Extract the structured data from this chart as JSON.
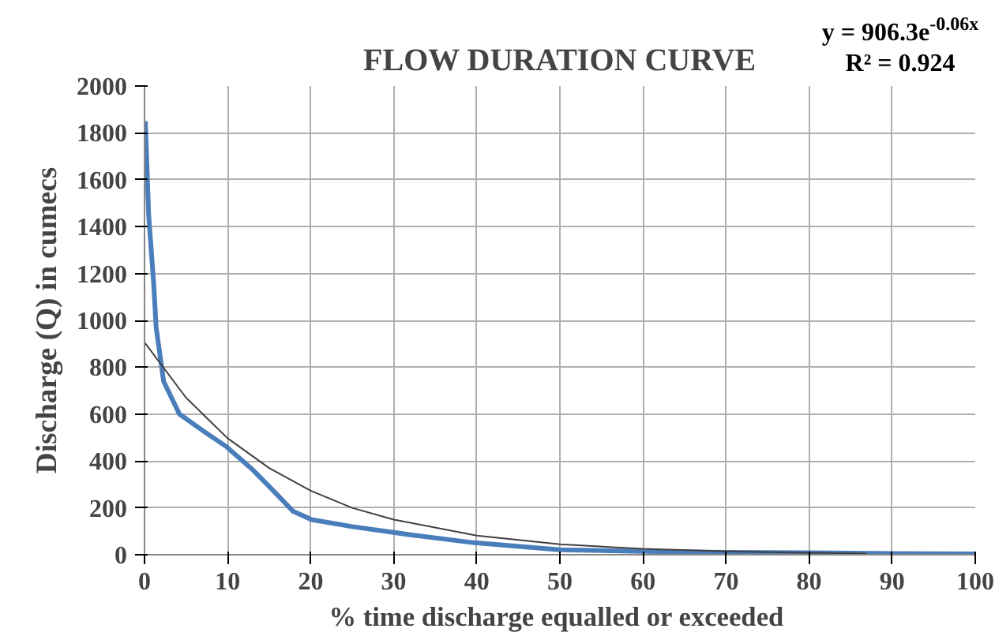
{
  "chart_data": {
    "type": "line",
    "title": "FLOW DURATION CURVE",
    "xlabel": "% time  discharge equalled or exceeded",
    "ylabel": "Discharge (Q) in cumecs",
    "xlim": [
      0,
      100
    ],
    "xticks": [
      0,
      10,
      20,
      30,
      40,
      50,
      60,
      70,
      80,
      90,
      100
    ],
    "ylim": [
      0,
      2000
    ],
    "yticks": [
      0,
      200,
      400,
      600,
      800,
      1000,
      1200,
      1400,
      1600,
      1800,
      2000
    ],
    "grid": true,
    "annotations": [
      "y = 906.3e$^{-0.06x}$",
      "R² = 0.924"
    ],
    "series": [
      {
        "color": "#4a7ebb",
        "x": [
          0.1,
          0.5,
          1.1,
          1.4,
          2.3,
          4.2,
          7,
          9.9,
          13.1,
          15.6,
          17.9,
          20.1,
          25,
          32,
          39.7,
          50,
          60,
          70,
          80,
          90,
          100
        ],
        "values": [
          1850,
          1450,
          1160,
          970,
          740,
          600,
          530,
          460,
          360,
          270,
          185,
          150,
          120,
          85,
          51,
          21,
          14,
          10,
          8,
          5,
          3
        ]
      },
      {
        "color": "#404040",
        "x": [
          0,
          5,
          10,
          15,
          20,
          25,
          30,
          40,
          50,
          60,
          70,
          80,
          87
        ],
        "values": [
          906,
          670,
          497,
          370,
          273,
          200,
          150,
          82,
          45,
          25,
          14,
          8,
          5
        ]
      }
    ]
  }
}
